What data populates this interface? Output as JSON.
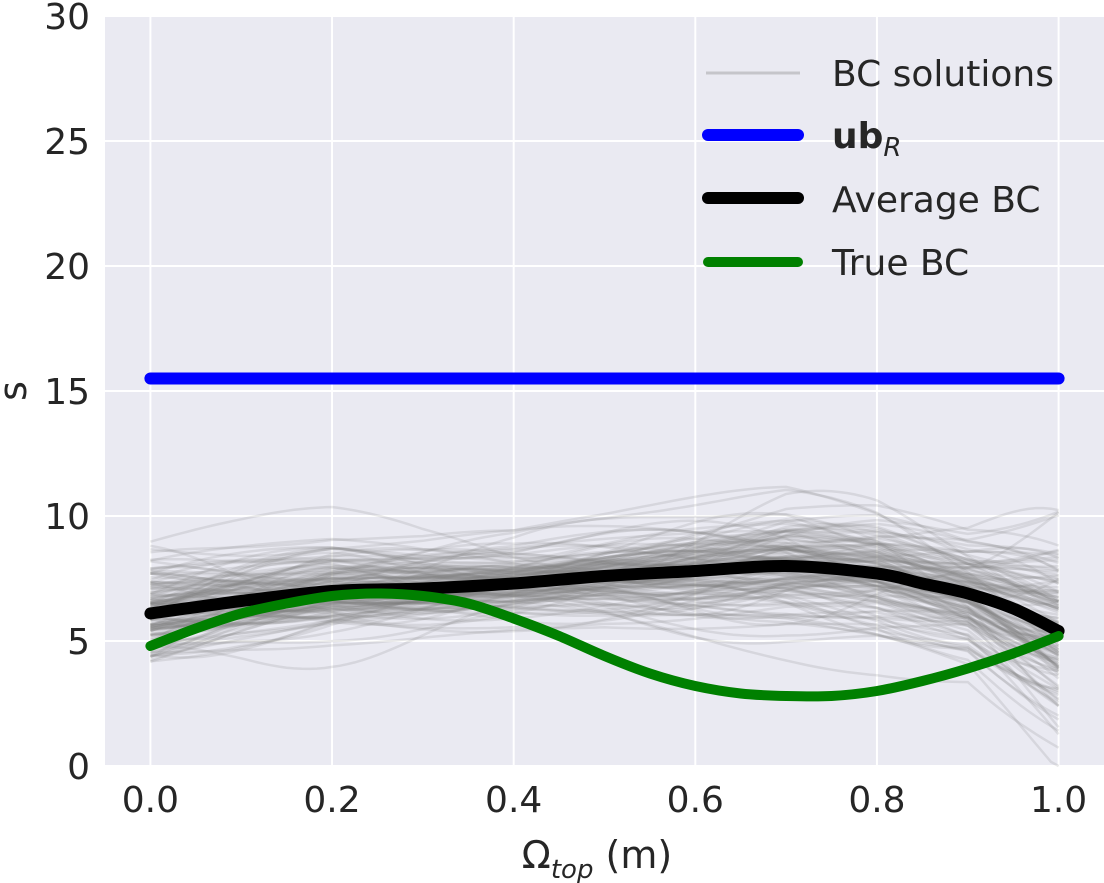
{
  "chart_data": {
    "type": "line",
    "xlabel_main": "Ω",
    "xlabel_sub": "top",
    "xlabel_unit": " (m)",
    "ylabel": "s",
    "xlim": [
      -0.05,
      1.05
    ],
    "ylim": [
      0,
      30
    ],
    "x_ticks": [
      0.0,
      0.2,
      0.4,
      0.6,
      0.8,
      1.0
    ],
    "x_tick_labels": [
      "0.0",
      "0.2",
      "0.4",
      "0.6",
      "0.8",
      "1.0"
    ],
    "y_ticks": [
      0,
      5,
      10,
      15,
      20,
      25,
      30
    ],
    "y_tick_labels": [
      "0",
      "5",
      "10",
      "15",
      "20",
      "25",
      "30"
    ],
    "grid": true,
    "background": "#EAEAF2",
    "legend_position": "top-right",
    "series": [
      {
        "name": "BC solutions",
        "style": "ensemble",
        "color": "#808080",
        "opacity": 0.18,
        "count": 150,
        "x": [
          0.0,
          0.1,
          0.2,
          0.3,
          0.4,
          0.5,
          0.6,
          0.7,
          0.8,
          0.9,
          1.0
        ],
        "mean": [
          6.1,
          6.6,
          7.0,
          7.1,
          7.3,
          7.6,
          7.8,
          8.0,
          7.7,
          6.9,
          5.4
        ],
        "spread": [
          1.9,
          1.7,
          1.6,
          1.4,
          1.3,
          1.4,
          1.6,
          1.8,
          1.8,
          1.7,
          2.8
        ]
      },
      {
        "name": "ub",
        "name_sub": "R",
        "color": "#0000FF",
        "linewidth": 12,
        "x": [
          0.0,
          1.0
        ],
        "y": [
          15.5,
          15.5
        ]
      },
      {
        "name": "Average BC",
        "color": "#000000",
        "linewidth": 12,
        "x": [
          0.0,
          0.1,
          0.2,
          0.3,
          0.4,
          0.5,
          0.6,
          0.7,
          0.8,
          0.85,
          0.9,
          0.95,
          1.0
        ],
        "y": [
          6.1,
          6.6,
          7.0,
          7.1,
          7.3,
          7.6,
          7.8,
          8.0,
          7.7,
          7.3,
          6.9,
          6.3,
          5.4
        ]
      },
      {
        "name": "True BC",
        "color": "#008000",
        "linewidth": 10,
        "x": [
          0.0,
          0.05,
          0.1,
          0.15,
          0.2,
          0.25,
          0.3,
          0.35,
          0.4,
          0.45,
          0.5,
          0.55,
          0.6,
          0.65,
          0.7,
          0.75,
          0.8,
          0.85,
          0.9,
          0.95,
          1.0
        ],
        "y": [
          4.8,
          5.5,
          6.1,
          6.5,
          6.8,
          6.9,
          6.8,
          6.5,
          5.9,
          5.2,
          4.4,
          3.7,
          3.2,
          2.9,
          2.8,
          2.8,
          3.0,
          3.4,
          3.9,
          4.5,
          5.2
        ]
      }
    ]
  }
}
